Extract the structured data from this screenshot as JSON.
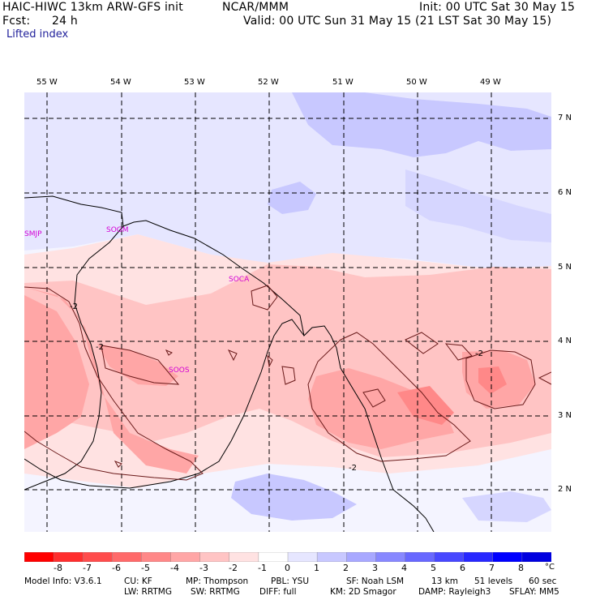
{
  "header": {
    "model": "HAIC-HIWC 13km ARW-GFS init",
    "org": "NCAR/MMM",
    "init": "Init: 00 UTC Sat 30 May 15",
    "fcst_label": "Fcst:",
    "fcst_value": "24 h",
    "valid": "Valid: 00 UTC Sun 31 May 15 (21 LST Sat 30 May 15)",
    "field": "Lifted index"
  },
  "map": {
    "lon_labels": [
      "55 W",
      "54 W",
      "53 W",
      "52 W",
      "51 W",
      "50 W",
      "49 W"
    ],
    "lat_labels": [
      "7 N",
      "6 N",
      "5 N",
      "4 N",
      "3 N",
      "2 N"
    ],
    "stations": [
      "SMJP",
      "SOGM",
      "SOCA",
      "SOOS"
    ],
    "contour_labels": [
      "-2",
      "-2",
      "-2",
      "-2"
    ]
  },
  "colorbar": {
    "labels": [
      "-8",
      "-7",
      "-6",
      "-5",
      "-4",
      "-3",
      "-2",
      "-1",
      "0",
      "1",
      "2",
      "3",
      "4",
      "5",
      "6",
      "7",
      "8"
    ],
    "unit": "°C",
    "colors": [
      "#ff0000",
      "#ff2e2e",
      "#ff4c4c",
      "#ff6a6a",
      "#ff8888",
      "#ffa6a6",
      "#ffc4c4",
      "#ffe2e2",
      "#ffffff",
      "#e6e6ff",
      "#c8c8ff",
      "#a8a8ff",
      "#8888ff",
      "#6868ff",
      "#4848ff",
      "#2828ff",
      "#0000ff",
      "#0000e0"
    ]
  },
  "model_info": {
    "line1": [
      "Model Info: V3.6.1",
      "CU: KF",
      "MP: Thompson",
      "PBL: YSU",
      "SF: Noah LSM",
      "13 km",
      "51 levels",
      "60 sec"
    ],
    "line2": [
      "LW: RRTMG",
      "SW: RRTMG",
      "DIFF: full",
      "KM: 2D Smagor",
      "DAMP: Rayleigh3",
      "SFLAY: MM5"
    ]
  }
}
